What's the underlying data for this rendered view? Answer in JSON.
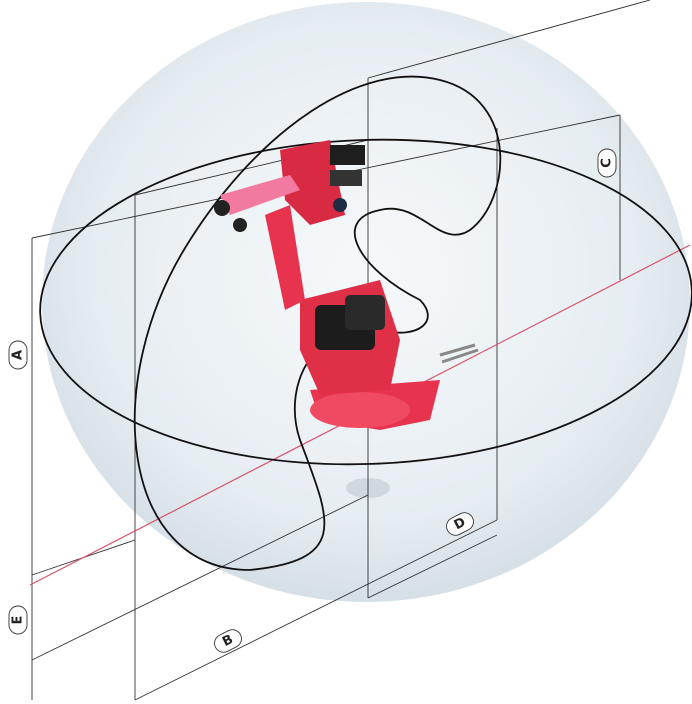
{
  "labels": [
    "A",
    "B",
    "C",
    "D",
    "E"
  ]
}
